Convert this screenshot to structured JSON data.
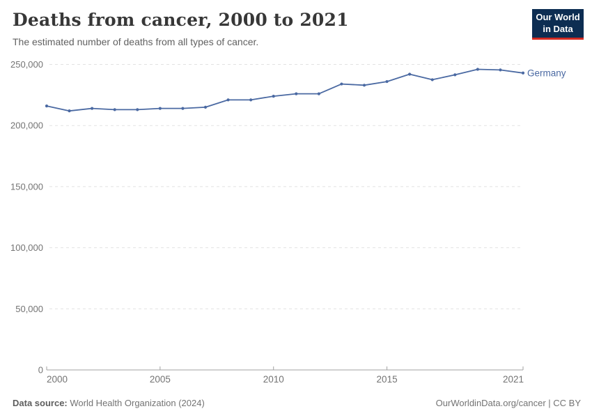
{
  "header": {
    "title": "Deaths from cancer, 2000 to 2021",
    "subtitle": "The estimated number of deaths from all types of cancer."
  },
  "logo": {
    "line1": "Our World",
    "line2": "in Data",
    "bg_color": "#0d2d52",
    "accent_color": "#d42b22"
  },
  "chart_data": {
    "type": "line",
    "title": "Deaths from cancer, 2000 to 2021",
    "xlabel": "",
    "ylabel": "",
    "xlim": [
      2000,
      2021
    ],
    "ylim": [
      0,
      250000
    ],
    "grid": "horizontal-dashed",
    "legend_position": "end-of-line",
    "x_ticks": [
      2000,
      2005,
      2010,
      2015,
      2021
    ],
    "y_ticks": [
      {
        "value": 0,
        "label": "0"
      },
      {
        "value": 50000,
        "label": "50,000"
      },
      {
        "value": 100000,
        "label": "100,000"
      },
      {
        "value": 150000,
        "label": "150,000"
      },
      {
        "value": 200000,
        "label": "200,000"
      },
      {
        "value": 250000,
        "label": "250,000"
      }
    ],
    "series": [
      {
        "name": "Germany",
        "color": "#4a69a2",
        "x": [
          2000,
          2001,
          2002,
          2003,
          2004,
          2005,
          2006,
          2007,
          2008,
          2009,
          2010,
          2011,
          2012,
          2013,
          2014,
          2015,
          2016,
          2017,
          2018,
          2019,
          2020,
          2021
        ],
        "values": [
          216000,
          212000,
          214000,
          213000,
          213000,
          214000,
          214000,
          215000,
          221000,
          221000,
          224000,
          226000,
          226000,
          234000,
          233000,
          236000,
          242000,
          237500,
          241500,
          246000,
          245500,
          243000
        ]
      }
    ]
  },
  "footer": {
    "source_label": "Data source:",
    "source_value": " World Health Organization (2024)",
    "attribution": "OurWorldinData.org/cancer | CC BY"
  },
  "colors": {
    "title": "#373737",
    "subtitle": "#616161",
    "grid": "#e2e2e2",
    "axis": "#a1a1a1",
    "tick_label": "#737373",
    "line": "#4a69a2"
  }
}
